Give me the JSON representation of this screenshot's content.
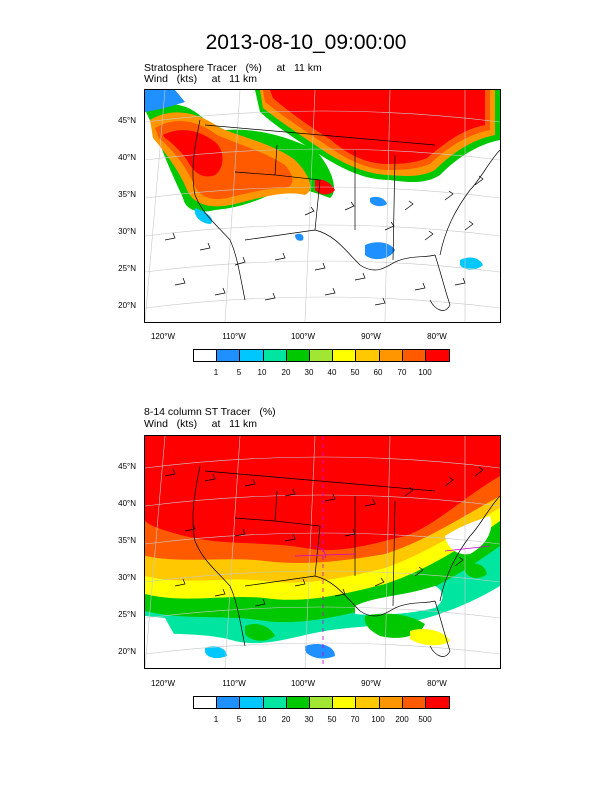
{
  "title": "2013-08-10_09:00:00",
  "panels": [
    {
      "title_line1": "Stratosphere Tracer   (%)     at   11 km",
      "title_line2": "Wind   (kts)     at   11 km",
      "lat_labels": [
        "45°N",
        "40°N",
        "35°N",
        "30°N",
        "25°N",
        "20°N"
      ],
      "lon_labels": [
        "120°W",
        "110°W",
        "100°W",
        "90°W",
        "80°W"
      ],
      "colorbar_labels": [
        "1",
        "5",
        "10",
        "20",
        "30",
        "40",
        "50",
        "60",
        "70",
        "100"
      ]
    },
    {
      "title_line1": "8-14 column ST Tracer   (%)",
      "title_line2": "Wind   (kts)     at   11 km",
      "lat_labels": [
        "45°N",
        "40°N",
        "35°N",
        "30°N",
        "25°N",
        "20°N"
      ],
      "lon_labels": [
        "120°W",
        "110°W",
        "100°W",
        "90°W",
        "80°W"
      ],
      "colorbar_labels": [
        "1",
        "5",
        "10",
        "20",
        "30",
        "50",
        "70",
        "100",
        "200",
        "500"
      ]
    }
  ],
  "colorbar_colors": [
    "#ffffff",
    "#1e90ff",
    "#00c8ff",
    "#00e6a0",
    "#00c800",
    "#a0e632",
    "#ffff00",
    "#ffc800",
    "#ff9600",
    "#ff5a00",
    "#ff0000"
  ]
}
